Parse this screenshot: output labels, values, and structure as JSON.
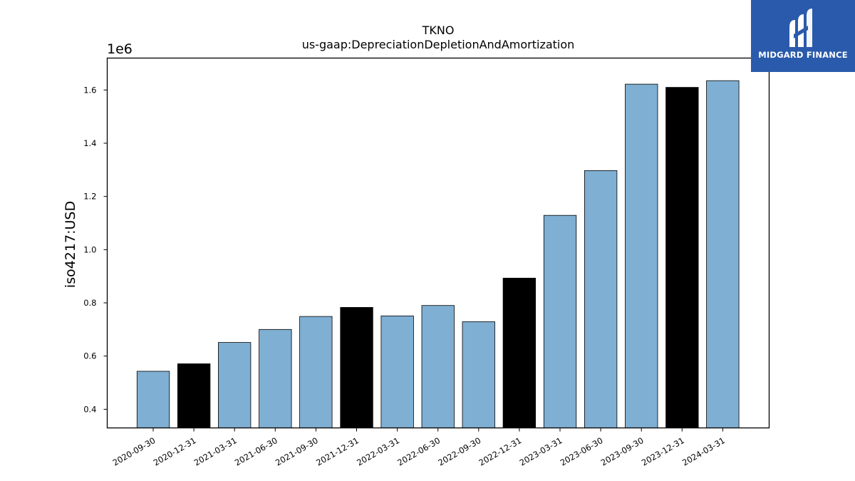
{
  "chart_data": {
    "type": "bar",
    "title": "TKNO",
    "subtitle": "us-gaap:DepreciationDepletionAndAmortization",
    "xlabel": "",
    "ylabel": "iso4217:USD",
    "y_multiplier_label": "1e6",
    "y_tick_scale": 1000000,
    "ylim": [
      330000,
      1720000
    ],
    "yticks": [
      400000,
      600000,
      800000,
      1000000,
      1200000,
      1400000,
      1600000
    ],
    "grid": false,
    "categories": [
      "2020-09-30",
      "2020-12-31",
      "2021-03-31",
      "2021-06-30",
      "2021-09-30",
      "2021-12-31",
      "2022-03-31",
      "2022-06-30",
      "2022-09-30",
      "2022-12-31",
      "2023-03-31",
      "2023-06-30",
      "2023-09-30",
      "2023-12-31",
      "2024-03-31"
    ],
    "values": [
      543000,
      571000,
      651000,
      700000,
      749000,
      783000,
      751000,
      790000,
      729000,
      893000,
      1129000,
      1297000,
      1622000,
      1610000,
      1635000
    ],
    "bar_colors": [
      "#7fafd3",
      "#000000",
      "#7fafd3",
      "#7fafd3",
      "#7fafd3",
      "#000000",
      "#7fafd3",
      "#7fafd3",
      "#7fafd3",
      "#000000",
      "#7fafd3",
      "#7fafd3",
      "#7fafd3",
      "#000000",
      "#7fafd3"
    ]
  },
  "logo": {
    "text": "MIDGARD FINANCE",
    "background": "#2a5aab"
  }
}
